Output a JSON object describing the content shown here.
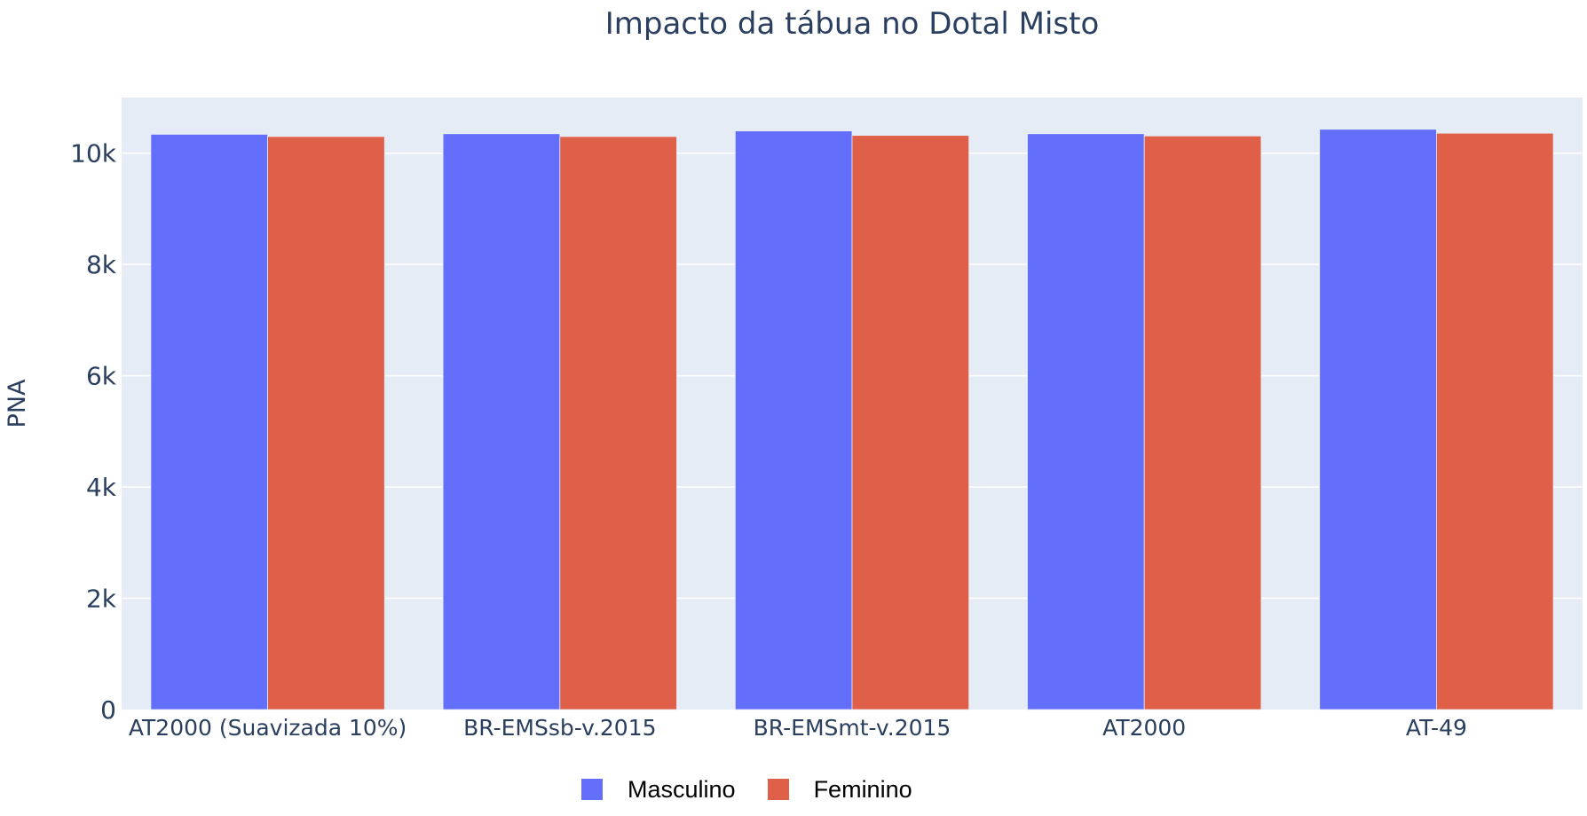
{
  "chart_data": {
    "type": "bar",
    "title": "Impacto da tábua no Dotal Misto",
    "xlabel": "",
    "ylabel": "PNA",
    "ylim": [
      0,
      11000
    ],
    "yticks": [
      0,
      2000,
      4000,
      6000,
      8000,
      10000
    ],
    "ytick_labels": [
      "0",
      "2k",
      "4k",
      "6k",
      "8k",
      "10k"
    ],
    "categories": [
      "AT2000 (Suavizada 10%)",
      "BR-EMSsb-v.2015",
      "BR-EMSmt-v.2015",
      "AT2000",
      "AT-49"
    ],
    "series": [
      {
        "name": "Masculino",
        "color": "#636EFA",
        "values": [
          10340,
          10350,
          10400,
          10350,
          10430
        ]
      },
      {
        "name": "Feminino",
        "color": "#E05F48",
        "values": [
          10300,
          10300,
          10320,
          10310,
          10360
        ]
      }
    ],
    "grid": true,
    "legend_position": "bottom-center",
    "plot_background": "#E5ECF6"
  }
}
